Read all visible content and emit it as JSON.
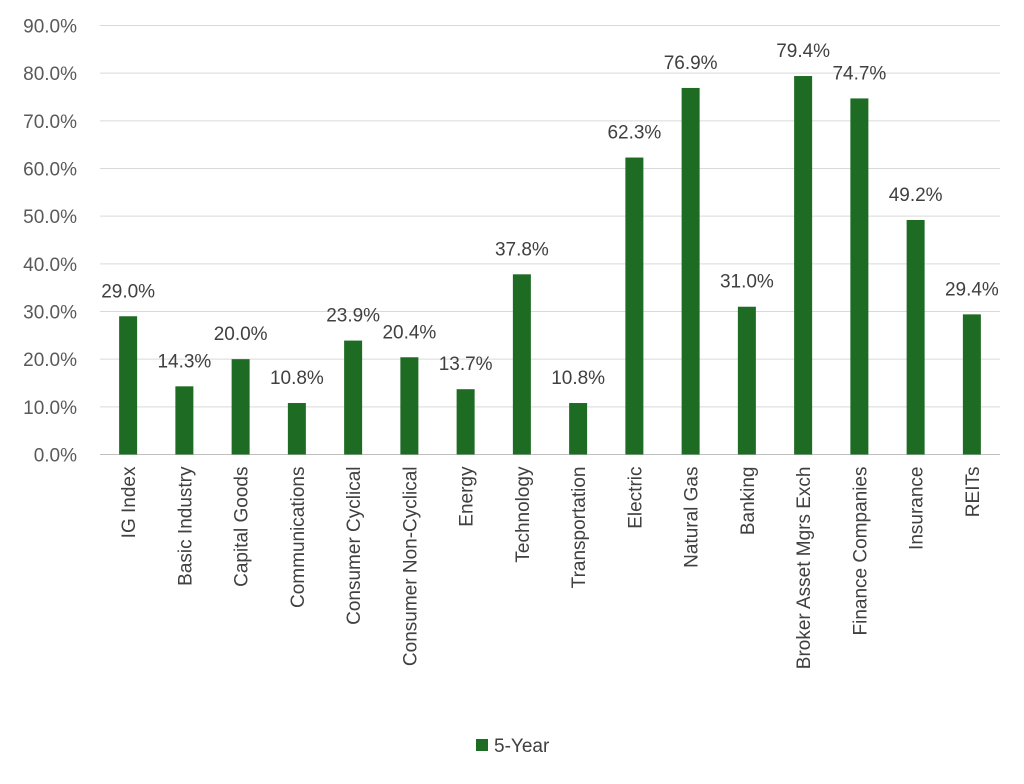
{
  "chart_data": {
    "type": "bar",
    "categories": [
      "IG Index",
      "Basic Industry",
      "Capital Goods",
      "Communications",
      "Consumer Cyclical",
      "Consumer Non-Cyclical",
      "Energy",
      "Technology",
      "Transportation",
      "Electric",
      "Natural Gas",
      "Banking",
      "Broker Asset Mgrs Exch",
      "Finance Companies",
      "Insurance",
      "REITs"
    ],
    "series": [
      {
        "name": "5-Year",
        "values": [
          29.0,
          14.3,
          20.0,
          10.8,
          23.9,
          20.4,
          13.7,
          37.8,
          10.8,
          62.3,
          76.9,
          31.0,
          79.4,
          74.7,
          49.2,
          29.4
        ],
        "labels": [
          "29.0%",
          "14.3%",
          "20.0%",
          "10.8%",
          "23.9%",
          "20.4%",
          "13.7%",
          "37.8%",
          "10.8%",
          "62.3%",
          "76.9%",
          "31.0%",
          "79.4%",
          "74.7%",
          "49.2%",
          "29.4%"
        ],
        "color": "#1e6b23"
      }
    ],
    "y_ticks": [
      "0.0%",
      "10.0%",
      "20.0%",
      "30.0%",
      "40.0%",
      "50.0%",
      "60.0%",
      "70.0%",
      "80.0%",
      "90.0%"
    ],
    "ylim": [
      0,
      90
    ],
    "grid": true,
    "legend": "bottom",
    "xlabel": "",
    "ylabel": ""
  }
}
